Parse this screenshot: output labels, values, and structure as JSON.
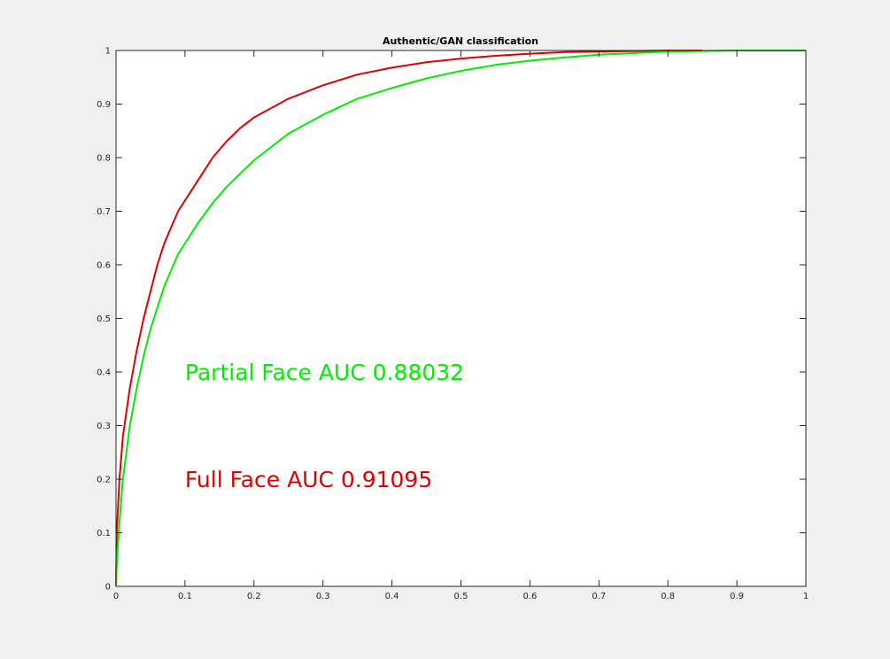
{
  "figure": {
    "background": "#f0f0f0"
  },
  "chart_data": {
    "type": "line",
    "title": "Authentic/GAN classification",
    "xlabel": "",
    "ylabel": "",
    "xlim": [
      0,
      1
    ],
    "ylim": [
      0,
      1
    ],
    "x_ticks": [
      "0",
      "0.1",
      "0.2",
      "0.3",
      "0.4",
      "0.5",
      "0.6",
      "0.7",
      "0.8",
      "0.9",
      "1"
    ],
    "y_ticks": [
      "0",
      "0.1",
      "0.2",
      "0.3",
      "0.4",
      "0.5",
      "0.6",
      "0.7",
      "0.8",
      "0.9",
      "1"
    ],
    "grid": false,
    "legend": "none",
    "series": [
      {
        "name": "Full Face AUC 0.91095",
        "color": "#e00000",
        "x": [
          0,
          0.001,
          0.005,
          0.01,
          0.02,
          0.03,
          0.04,
          0.05,
          0.06,
          0.07,
          0.08,
          0.09,
          0.1,
          0.12,
          0.14,
          0.16,
          0.18,
          0.2,
          0.25,
          0.3,
          0.35,
          0.4,
          0.45,
          0.5,
          0.55,
          0.6,
          0.65,
          0.7,
          0.75,
          0.8,
          0.85
        ],
        "y": [
          0,
          0.1,
          0.2,
          0.28,
          0.37,
          0.44,
          0.5,
          0.55,
          0.6,
          0.64,
          0.67,
          0.7,
          0.72,
          0.76,
          0.8,
          0.83,
          0.855,
          0.875,
          0.91,
          0.935,
          0.955,
          0.968,
          0.978,
          0.985,
          0.99,
          0.994,
          0.997,
          0.998,
          0.999,
          1,
          1
        ]
      },
      {
        "name": "Partial Face AUC 0.88032",
        "color": "#00ee00",
        "x": [
          0,
          0.001,
          0.005,
          0.01,
          0.02,
          0.03,
          0.04,
          0.05,
          0.06,
          0.07,
          0.08,
          0.09,
          0.1,
          0.12,
          0.14,
          0.16,
          0.18,
          0.2,
          0.25,
          0.3,
          0.35,
          0.4,
          0.45,
          0.5,
          0.55,
          0.6,
          0.65,
          0.7,
          0.75,
          0.8,
          0.85,
          0.9,
          1
        ],
        "y": [
          0,
          0.04,
          0.12,
          0.2,
          0.3,
          0.37,
          0.43,
          0.48,
          0.52,
          0.56,
          0.59,
          0.62,
          0.64,
          0.68,
          0.715,
          0.745,
          0.77,
          0.795,
          0.845,
          0.88,
          0.91,
          0.93,
          0.948,
          0.962,
          0.973,
          0.981,
          0.987,
          0.992,
          0.995,
          0.998,
          0.999,
          1,
          1
        ]
      }
    ],
    "annotations": [
      {
        "text": "Partial Face AUC 0.88032",
        "x": 0.1,
        "y": 0.4,
        "color": "#00ee00"
      },
      {
        "text": "Full Face AUC 0.91095",
        "x": 0.1,
        "y": 0.2,
        "color": "#e00000"
      }
    ]
  }
}
